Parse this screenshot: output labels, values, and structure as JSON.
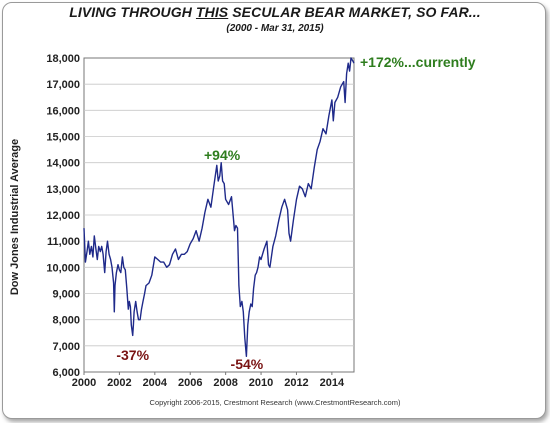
{
  "title_parts": [
    "LIVING THROUGH ",
    "THIS",
    " SECULAR BEAR MARKET, SO FAR..."
  ],
  "subtitle": "(2000 - Mar 31, 2015)",
  "credit": "Copyright 2006-2015, Crestmont Research (www.CrestmontResearch.com)",
  "colors": {
    "series": "#1f2a8a",
    "gain": "#2e7d1e",
    "loss": "#7a1414",
    "grid": "#c8c8c8"
  },
  "chart_data": {
    "type": "line",
    "title": "LIVING THROUGH THIS SECULAR BEAR MARKET, SO FAR...",
    "subtitle": "(2000 - Mar 31, 2015)",
    "xlabel": "",
    "ylabel": "Dow Jones Industrial Average",
    "xlim": [
      2000,
      2015.25
    ],
    "ylim": [
      6000,
      18000
    ],
    "grid": "horizontal",
    "x_ticks": [
      "2000",
      "2002",
      "2004",
      "2006",
      "2008",
      "2010",
      "2012",
      "2014"
    ],
    "y_ticks": [
      "6,000",
      "7,000",
      "8,000",
      "9,000",
      "10,000",
      "11,000",
      "12,000",
      "13,000",
      "14,000",
      "15,000",
      "16,000",
      "17,000",
      "18,000"
    ],
    "series": [
      {
        "x": [
          2000.0,
          2000.08,
          2000.17,
          2000.25,
          2000.33,
          2000.42,
          2000.5,
          2000.58,
          2000.67,
          2000.75,
          2000.83,
          2000.92,
          2001.0,
          2001.08,
          2001.17,
          2001.25,
          2001.33,
          2001.42,
          2001.5,
          2001.58,
          2001.67,
          2001.71,
          2001.75,
          2001.83,
          2001.92,
          2002.0,
          2002.08,
          2002.17,
          2002.25,
          2002.33,
          2002.42,
          2002.5,
          2002.56,
          2002.62,
          2002.67,
          2002.75,
          2002.79,
          2002.83,
          2002.92,
          2003.0,
          2003.08,
          2003.17,
          2003.25,
          2003.33,
          2003.42,
          2003.5,
          2003.67,
          2003.83,
          2004.0,
          2004.17,
          2004.33,
          2004.5,
          2004.67,
          2004.83,
          2005.0,
          2005.17,
          2005.33,
          2005.5,
          2005.67,
          2005.83,
          2006.0,
          2006.17,
          2006.33,
          2006.5,
          2006.67,
          2006.83,
          2007.0,
          2007.17,
          2007.33,
          2007.5,
          2007.58,
          2007.67,
          2007.75,
          2007.83,
          2007.92,
          2008.0,
          2008.17,
          2008.33,
          2008.5,
          2008.58,
          2008.67,
          2008.75,
          2008.83,
          2008.92,
          2009.0,
          2009.08,
          2009.17,
          2009.25,
          2009.33,
          2009.42,
          2009.5,
          2009.58,
          2009.67,
          2009.75,
          2009.83,
          2009.92,
          2010.0,
          2010.17,
          2010.33,
          2010.42,
          2010.5,
          2010.67,
          2010.83,
          2011.0,
          2011.17,
          2011.33,
          2011.5,
          2011.58,
          2011.67,
          2011.83,
          2012.0,
          2012.17,
          2012.33,
          2012.5,
          2012.67,
          2012.83,
          2013.0,
          2013.17,
          2013.33,
          2013.5,
          2013.67,
          2013.83,
          2014.0,
          2014.08,
          2014.17,
          2014.33,
          2014.5,
          2014.67,
          2014.75,
          2014.83,
          2014.92,
          2015.0,
          2015.08,
          2015.17,
          2015.25
        ],
        "y": [
          11500,
          10200,
          10600,
          11000,
          10500,
          10800,
          10400,
          11200,
          10700,
          10300,
          10800,
          10600,
          10800,
          10500,
          9800,
          10600,
          11000,
          10500,
          10300,
          10000,
          9400,
          8300,
          9300,
          9800,
          10100,
          9900,
          9800,
          10400,
          10000,
          9900,
          9200,
          8400,
          8700,
          8500,
          7800,
          7400,
          7800,
          8300,
          8700,
          8300,
          8000,
          8000,
          8400,
          8700,
          9000,
          9300,
          9400,
          9700,
          10400,
          10300,
          10200,
          10200,
          10000,
          10100,
          10500,
          10700,
          10300,
          10500,
          10500,
          10600,
          10900,
          11100,
          11400,
          11000,
          11500,
          12100,
          12600,
          12300,
          13100,
          13900,
          13300,
          13500,
          14000,
          13300,
          13200,
          12600,
          12400,
          12700,
          11400,
          11600,
          11500,
          9300,
          8500,
          8700,
          8300,
          7300,
          6600,
          7800,
          8300,
          8600,
          8500,
          9200,
          9700,
          9800,
          10000,
          10400,
          10300,
          10700,
          11000,
          10100,
          10000,
          10800,
          11200,
          11800,
          12300,
          12600,
          12200,
          11300,
          11000,
          11800,
          12600,
          13100,
          13000,
          12700,
          13200,
          13000,
          13800,
          14500,
          14800,
          15300,
          15100,
          15800,
          16400,
          15600,
          16300,
          16500,
          16900,
          17100,
          16300,
          17400,
          17800,
          17500,
          18000,
          17900,
          17800
        ]
      }
    ],
    "annotations": [
      {
        "text": "+94%",
        "x": 2007.8,
        "y": 14300,
        "kind": "gain"
      },
      {
        "text": "-37%",
        "x": 2002.75,
        "y": 6650,
        "kind": "loss"
      },
      {
        "text": "-54%",
        "x": 2009.2,
        "y": 6300,
        "kind": "loss"
      },
      {
        "text": "+172%...currently",
        "x": 2015.3,
        "y": 17850,
        "kind": "gain"
      }
    ]
  }
}
